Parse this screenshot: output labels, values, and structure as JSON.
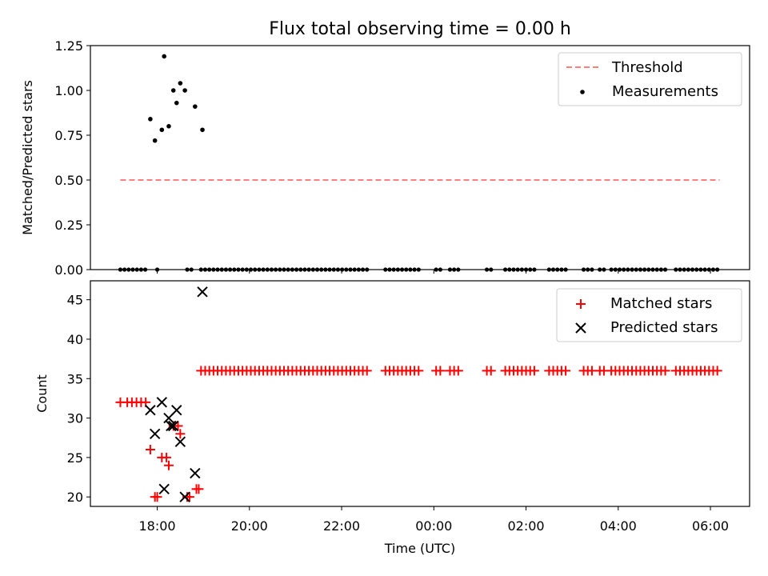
{
  "chart_data": [
    {
      "type": "scatter",
      "title": "Flux total observing time = 0.00 h",
      "xlabel": "",
      "ylabel": "Matched/Predicted stars",
      "xlim": [
        16.55,
        30.85
      ],
      "ylim": [
        0.0,
        1.25
      ],
      "yticks": [
        0.0,
        0.25,
        0.5,
        0.75,
        1.0,
        1.25
      ],
      "ytick_labels": [
        "0.00",
        "0.25",
        "0.50",
        "0.75",
        "1.00",
        "1.25"
      ],
      "xticks": [
        18,
        20,
        22,
        24,
        26,
        28,
        30
      ],
      "legend": {
        "position": "top-right",
        "entries": [
          "Threshold",
          "Measurements"
        ]
      },
      "series": [
        {
          "name": "Threshold",
          "kind": "dashed-line",
          "color": "#ff7f7f",
          "x": [
            17.2,
            30.2
          ],
          "y": [
            0.5,
            0.5
          ]
        },
        {
          "name": "Measurements",
          "kind": "dot",
          "color": "#000000",
          "points": [
            [
              17.85,
              0.84
            ],
            [
              17.95,
              0.72
            ],
            [
              18.1,
              0.78
            ],
            [
              18.15,
              1.19
            ],
            [
              18.25,
              0.8
            ],
            [
              18.35,
              1.0
            ],
            [
              18.42,
              0.93
            ],
            [
              18.5,
              1.04
            ],
            [
              18.6,
              1.0
            ],
            [
              18.82,
              0.91
            ],
            [
              18.98,
              0.78
            ]
          ],
          "zero_ranges": [
            [
              17.2,
              17.8
            ],
            [
              18.0,
              18.0
            ],
            [
              18.65,
              18.8
            ],
            [
              18.95,
              22.55
            ],
            [
              22.95,
              23.75
            ],
            [
              24.05,
              24.2
            ],
            [
              24.35,
              24.6
            ],
            [
              25.15,
              25.25
            ],
            [
              25.55,
              26.25
            ],
            [
              26.5,
              26.9
            ],
            [
              27.25,
              27.45
            ],
            [
              27.6,
              27.7
            ],
            [
              27.85,
              29.1
            ],
            [
              29.25,
              30.2
            ]
          ]
        }
      ]
    },
    {
      "type": "scatter",
      "title": "",
      "xlabel": "Time (UTC)",
      "ylabel": "Count",
      "xlim": [
        16.55,
        30.85
      ],
      "ylim": [
        18.8,
        47.4
      ],
      "yticks": [
        20,
        25,
        30,
        35,
        40,
        45
      ],
      "ytick_labels": [
        "20",
        "25",
        "30",
        "35",
        "40",
        "45"
      ],
      "xticks": [
        18,
        20,
        22,
        24,
        26,
        28,
        30
      ],
      "xtick_labels": [
        "18:00",
        "20:00",
        "22:00",
        "00:00",
        "02:00",
        "04:00",
        "06:00"
      ],
      "legend": {
        "position": "top-right",
        "entries": [
          "Matched stars",
          "Predicted stars"
        ]
      },
      "series": [
        {
          "name": "Matched stars",
          "kind": "plus",
          "color": "#ff0000",
          "points": [
            [
              17.2,
              32
            ],
            [
              17.35,
              32
            ],
            [
              17.45,
              32
            ],
            [
              17.55,
              32
            ],
            [
              17.65,
              32
            ],
            [
              17.75,
              32
            ],
            [
              17.85,
              26
            ],
            [
              17.95,
              20
            ],
            [
              18.0,
              20
            ],
            [
              18.1,
              25
            ],
            [
              18.2,
              25
            ],
            [
              18.25,
              24
            ],
            [
              18.35,
              29
            ],
            [
              18.45,
              29
            ],
            [
              18.5,
              28
            ],
            [
              18.65,
              20
            ],
            [
              18.7,
              20
            ],
            [
              18.85,
              21
            ],
            [
              18.9,
              21
            ]
          ],
          "constant_value": 36,
          "constant_ranges": [
            [
              18.95,
              22.55
            ],
            [
              22.95,
              23.75
            ],
            [
              24.05,
              24.2
            ],
            [
              24.35,
              24.6
            ],
            [
              25.15,
              25.25
            ],
            [
              25.55,
              26.25
            ],
            [
              26.5,
              26.9
            ],
            [
              27.25,
              27.45
            ],
            [
              27.6,
              27.7
            ],
            [
              27.85,
              29.1
            ],
            [
              29.25,
              30.2
            ]
          ]
        },
        {
          "name": "Predicted stars",
          "kind": "x",
          "color": "#000000",
          "points": [
            [
              17.85,
              31
            ],
            [
              17.95,
              28
            ],
            [
              18.1,
              32
            ],
            [
              18.15,
              21
            ],
            [
              18.25,
              30
            ],
            [
              18.3,
              29
            ],
            [
              18.35,
              29
            ],
            [
              18.42,
              31
            ],
            [
              18.5,
              27
            ],
            [
              18.6,
              20
            ],
            [
              18.82,
              23
            ],
            [
              18.98,
              46
            ]
          ]
        }
      ]
    }
  ]
}
